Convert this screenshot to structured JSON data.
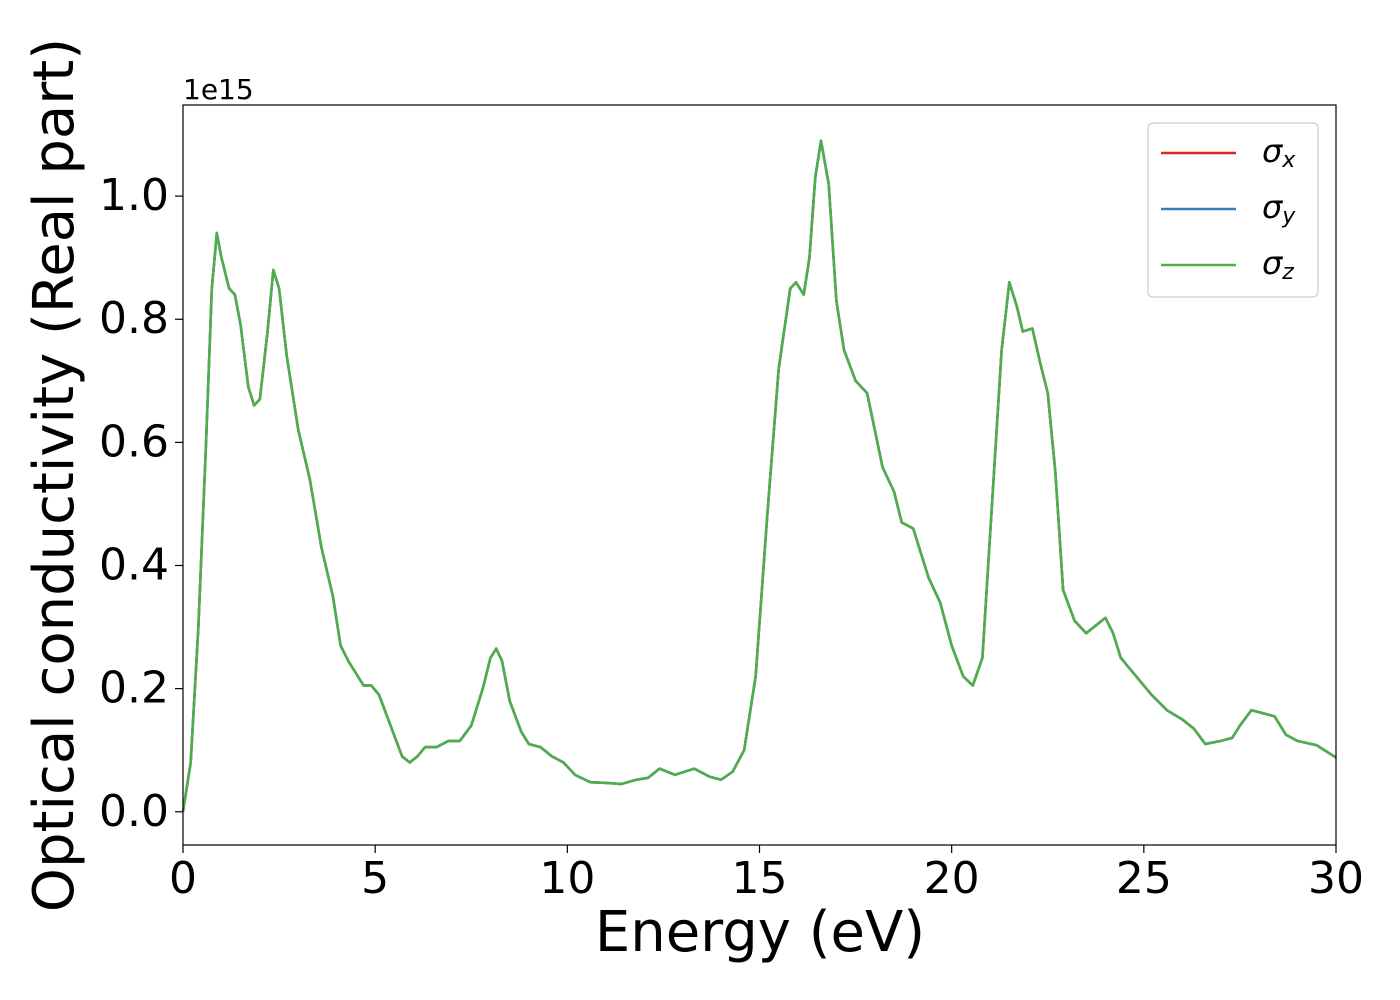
{
  "chart_data": {
    "type": "line",
    "xlabel": "Energy (eV)",
    "ylabel": "Optical conductivity (Real part)",
    "y_offset_label": "1e15",
    "xlim": [
      0,
      30
    ],
    "xticks": [
      0,
      5,
      10,
      15,
      20,
      25,
      30
    ],
    "ylim": [
      -0.054,
      1.148
    ],
    "yticks": [
      {
        "value": 0,
        "label": "0.0"
      },
      {
        "value": 0.2,
        "label": "0.2"
      },
      {
        "value": 0.4,
        "label": "0.4"
      },
      {
        "value": 0.6,
        "label": "0.6"
      },
      {
        "value": 0.8,
        "label": "0.8"
      },
      {
        "value": 1,
        "label": "1.0"
      }
    ],
    "legend": "upper right",
    "x": [
      0,
      0.2,
      0.4,
      0.6,
      0.75,
      0.88,
      1.0,
      1.2,
      1.35,
      1.5,
      1.7,
      1.85,
      2.0,
      2.2,
      2.35,
      2.5,
      2.7,
      3.0,
      3.3,
      3.6,
      3.9,
      4.1,
      4.3,
      4.5,
      4.7,
      4.9,
      5.1,
      5.4,
      5.7,
      5.9,
      6.1,
      6.3,
      6.6,
      6.9,
      7.2,
      7.5,
      7.8,
      8.0,
      8.15,
      8.3,
      8.5,
      8.8,
      9.0,
      9.3,
      9.6,
      9.9,
      10.2,
      10.6,
      11.0,
      11.4,
      11.8,
      12.1,
      12.4,
      12.8,
      13.3,
      13.7,
      14.0,
      14.3,
      14.6,
      14.9,
      15.2,
      15.5,
      15.8,
      15.95,
      16.15,
      16.3,
      16.45,
      16.6,
      16.8,
      17.0,
      17.2,
      17.5,
      17.8,
      18.0,
      18.2,
      18.5,
      18.7,
      19.0,
      19.2,
      19.4,
      19.7,
      20.0,
      20.3,
      20.55,
      20.8,
      21.0,
      21.3,
      21.5,
      21.7,
      21.85,
      22.1,
      22.3,
      22.5,
      22.7,
      22.9,
      23.2,
      23.5,
      23.8,
      24.0,
      24.2,
      24.4,
      24.8,
      25.2,
      25.6,
      26.0,
      26.3,
      26.6,
      27.0,
      27.3,
      27.5,
      27.8,
      28.1,
      28.4,
      28.7,
      29.0,
      29.5,
      30.0
    ],
    "series": [
      {
        "name": "σx",
        "color": "#d62728",
        "values": [
          0,
          0.08,
          0.3,
          0.6,
          0.85,
          0.94,
          0.9,
          0.85,
          0.84,
          0.79,
          0.69,
          0.66,
          0.67,
          0.78,
          0.88,
          0.85,
          0.74,
          0.62,
          0.54,
          0.43,
          0.35,
          0.27,
          0.245,
          0.225,
          0.205,
          0.205,
          0.19,
          0.14,
          0.09,
          0.08,
          0.09,
          0.105,
          0.105,
          0.115,
          0.115,
          0.14,
          0.2,
          0.25,
          0.265,
          0.245,
          0.18,
          0.13,
          0.11,
          0.105,
          0.09,
          0.08,
          0.06,
          0.048,
          0.047,
          0.045,
          0.052,
          0.055,
          0.07,
          0.06,
          0.07,
          0.057,
          0.052,
          0.065,
          0.1,
          0.22,
          0.48,
          0.72,
          0.85,
          0.86,
          0.84,
          0.9,
          1.03,
          1.09,
          1.02,
          0.83,
          0.75,
          0.7,
          0.68,
          0.62,
          0.56,
          0.52,
          0.47,
          0.46,
          0.42,
          0.38,
          0.34,
          0.27,
          0.22,
          0.205,
          0.25,
          0.45,
          0.75,
          0.86,
          0.82,
          0.78,
          0.785,
          0.73,
          0.68,
          0.55,
          0.36,
          0.31,
          0.29,
          0.305,
          0.315,
          0.29,
          0.25,
          0.22,
          0.19,
          0.165,
          0.15,
          0.135,
          0.11,
          0.115,
          0.12,
          0.14,
          0.165,
          0.16,
          0.155,
          0.125,
          0.115,
          0.108,
          0.088
        ]
      },
      {
        "name": "σy",
        "color": "#3a7bb8",
        "values": [
          0,
          0.08,
          0.3,
          0.6,
          0.85,
          0.94,
          0.9,
          0.85,
          0.84,
          0.79,
          0.69,
          0.66,
          0.67,
          0.78,
          0.88,
          0.85,
          0.74,
          0.62,
          0.54,
          0.43,
          0.35,
          0.27,
          0.245,
          0.225,
          0.205,
          0.205,
          0.19,
          0.14,
          0.09,
          0.08,
          0.09,
          0.105,
          0.105,
          0.115,
          0.115,
          0.14,
          0.2,
          0.25,
          0.265,
          0.245,
          0.18,
          0.13,
          0.11,
          0.105,
          0.09,
          0.08,
          0.06,
          0.048,
          0.047,
          0.045,
          0.052,
          0.055,
          0.07,
          0.06,
          0.07,
          0.057,
          0.052,
          0.065,
          0.1,
          0.22,
          0.48,
          0.72,
          0.85,
          0.86,
          0.84,
          0.9,
          1.03,
          1.09,
          1.02,
          0.83,
          0.75,
          0.7,
          0.68,
          0.62,
          0.56,
          0.52,
          0.47,
          0.46,
          0.42,
          0.38,
          0.34,
          0.27,
          0.22,
          0.205,
          0.25,
          0.45,
          0.75,
          0.86,
          0.82,
          0.78,
          0.785,
          0.73,
          0.68,
          0.55,
          0.36,
          0.31,
          0.29,
          0.305,
          0.315,
          0.29,
          0.25,
          0.22,
          0.19,
          0.165,
          0.15,
          0.135,
          0.11,
          0.115,
          0.12,
          0.14,
          0.165,
          0.16,
          0.155,
          0.125,
          0.115,
          0.108,
          0.088
        ]
      },
      {
        "name": "σz",
        "color": "#4daf4a",
        "values": [
          0,
          0.08,
          0.3,
          0.6,
          0.85,
          0.94,
          0.9,
          0.85,
          0.84,
          0.79,
          0.69,
          0.66,
          0.67,
          0.78,
          0.88,
          0.85,
          0.74,
          0.62,
          0.54,
          0.43,
          0.35,
          0.27,
          0.245,
          0.225,
          0.205,
          0.205,
          0.19,
          0.14,
          0.09,
          0.08,
          0.09,
          0.105,
          0.105,
          0.115,
          0.115,
          0.14,
          0.2,
          0.25,
          0.265,
          0.245,
          0.18,
          0.13,
          0.11,
          0.105,
          0.09,
          0.08,
          0.06,
          0.048,
          0.047,
          0.045,
          0.052,
          0.055,
          0.07,
          0.06,
          0.07,
          0.057,
          0.052,
          0.065,
          0.1,
          0.22,
          0.48,
          0.72,
          0.85,
          0.86,
          0.84,
          0.9,
          1.03,
          1.09,
          1.02,
          0.83,
          0.75,
          0.7,
          0.68,
          0.62,
          0.56,
          0.52,
          0.47,
          0.46,
          0.42,
          0.38,
          0.34,
          0.27,
          0.22,
          0.205,
          0.25,
          0.45,
          0.75,
          0.86,
          0.82,
          0.78,
          0.785,
          0.73,
          0.68,
          0.55,
          0.36,
          0.31,
          0.29,
          0.305,
          0.315,
          0.29,
          0.25,
          0.22,
          0.19,
          0.165,
          0.15,
          0.135,
          0.11,
          0.115,
          0.12,
          0.14,
          0.165,
          0.16,
          0.155,
          0.125,
          0.115,
          0.108,
          0.088
        ]
      }
    ]
  }
}
